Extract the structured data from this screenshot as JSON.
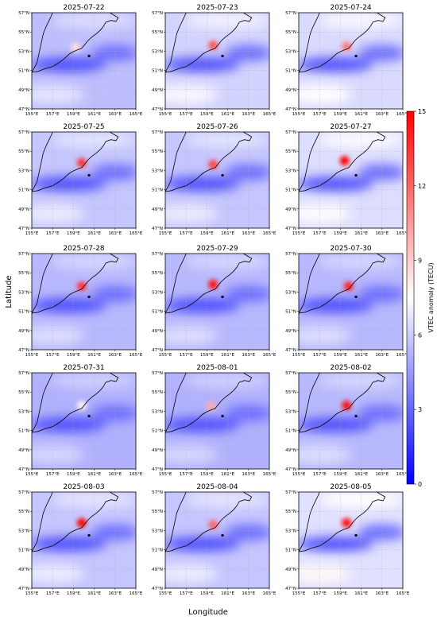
{
  "chart_data": {
    "type": "heatmap",
    "description_type": "small-multiple VTEC anomaly maps",
    "xlabel": "Longitude",
    "ylabel": "Latitude",
    "xticks": [
      "155°E",
      "157°E",
      "159°E",
      "161°E",
      "163°E",
      "165°E"
    ],
    "yticks": [
      "57°N",
      "55°N",
      "53°N",
      "51°N",
      "49°N",
      "47°N"
    ],
    "xlim": [
      155,
      165
    ],
    "ylim": [
      47,
      57
    ],
    "colorbar": {
      "label": "VTEC anomaly (TECU)",
      "ticks": [
        0,
        3,
        6,
        9,
        12,
        15
      ],
      "range": [
        0,
        15
      ],
      "colors": {
        "low": "#0000ff",
        "mid": "#ffffff",
        "high": "#ff0000"
      }
    },
    "markers": [
      {
        "name": "station",
        "lon": 160.5,
        "lat": 52.5
      }
    ],
    "panels": [
      {
        "date": "2025-07-22",
        "background": 5.6,
        "hot": {
          "lon": 159.2,
          "lat": 53.4,
          "value": 8.5
        }
      },
      {
        "date": "2025-07-23",
        "background": 6.2,
        "hot": {
          "lon": 159.6,
          "lat": 53.6,
          "value": 12.5
        }
      },
      {
        "date": "2025-07-24",
        "background": 6.4,
        "hot": {
          "lon": 159.6,
          "lat": 53.5,
          "value": 11.5
        }
      },
      {
        "date": "2025-07-25",
        "background": 5.8,
        "hot": {
          "lon": 159.8,
          "lat": 53.8,
          "value": 13.5
        }
      },
      {
        "date": "2025-07-26",
        "background": 5.8,
        "hot": {
          "lon": 159.6,
          "lat": 53.6,
          "value": 13.0
        }
      },
      {
        "date": "2025-07-27",
        "background": 6.5,
        "hot": {
          "lon": 159.4,
          "lat": 54.0,
          "value": 15.0
        }
      },
      {
        "date": "2025-07-28",
        "background": 5.4,
        "hot": {
          "lon": 159.8,
          "lat": 53.6,
          "value": 13.5
        }
      },
      {
        "date": "2025-07-29",
        "background": 5.4,
        "hot": {
          "lon": 159.6,
          "lat": 53.8,
          "value": 14.5
        }
      },
      {
        "date": "2025-07-30",
        "background": 5.4,
        "hot": {
          "lon": 159.8,
          "lat": 53.6,
          "value": 14.0
        }
      },
      {
        "date": "2025-07-31",
        "background": 5.2,
        "hot": {
          "lon": 159.8,
          "lat": 53.6,
          "value": 8.0
        }
      },
      {
        "date": "2025-08-01",
        "background": 5.2,
        "hot": {
          "lon": 159.4,
          "lat": 53.5,
          "value": 10.0
        }
      },
      {
        "date": "2025-08-02",
        "background": 5.4,
        "hot": {
          "lon": 159.6,
          "lat": 53.6,
          "value": 14.5
        }
      },
      {
        "date": "2025-08-03",
        "background": 5.8,
        "hot": {
          "lon": 159.8,
          "lat": 53.8,
          "value": 15.0
        }
      },
      {
        "date": "2025-08-04",
        "background": 5.8,
        "hot": {
          "lon": 159.6,
          "lat": 53.6,
          "value": 12.0
        }
      },
      {
        "date": "2025-08-05",
        "background": 6.6,
        "hot": {
          "lon": 159.6,
          "lat": 53.8,
          "value": 14.5
        }
      }
    ]
  }
}
